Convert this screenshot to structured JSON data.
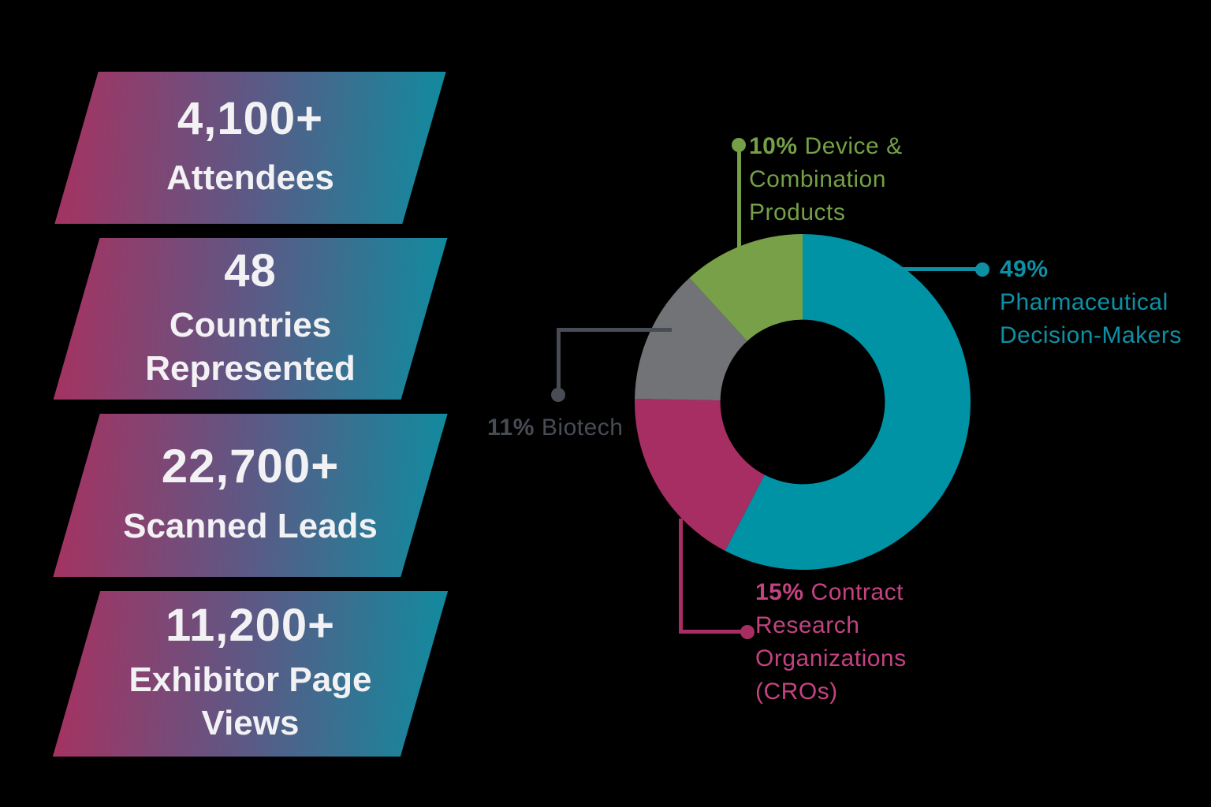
{
  "colors": {
    "background": "#000000",
    "banner_gradient_left": "#a43362",
    "banner_gradient_mid": "#5f5784",
    "banner_gradient_right": "#128a9e",
    "banner_text": "#f2f1f4"
  },
  "stat_banners": [
    {
      "value": "4,100+",
      "label": "Attendees"
    },
    {
      "value": "48",
      "label": "Countries Represented"
    },
    {
      "value": "22,700+",
      "label": "Scanned Leads"
    },
    {
      "value": "11,200+",
      "label": "Exhibitor Page Views"
    }
  ],
  "chart_data": {
    "type": "pie",
    "subtype": "donut",
    "inner_radius_ratio": 0.49,
    "start_angle_deg": 0,
    "direction": "clockwise",
    "values_normalized_to_circle": true,
    "legend_position": "around-chart",
    "segments": [
      {
        "name": "Pharmaceutical Decision-Makers",
        "value_pct": 49,
        "slice_color": "#0092a5",
        "label_color": "#0e90a4",
        "leader_color": "#0e90a4",
        "pct_text": "49%",
        "label_line1_rest": "",
        "label_lines": [
          "Pharmaceutical",
          "Decision-Makers"
        ]
      },
      {
        "name": "Contract Research Organizations (CROs)",
        "value_pct": 15,
        "slice_color": "#a72e62",
        "label_color": "#c24380",
        "leader_color": "#a72e62",
        "pct_text": "15%",
        "label_line1_rest": "Contract",
        "label_lines": [
          "Research",
          "Organizations",
          "(CROs)"
        ]
      },
      {
        "name": "Biotech",
        "value_pct": 11,
        "slice_color": "#727376",
        "label_color": "#474c55",
        "leader_color": "#474c55",
        "pct_text": "11%",
        "label_line1_rest": "Biotech",
        "label_lines": []
      },
      {
        "name": "Device & Combination Products",
        "value_pct": 10,
        "slice_color": "#78a049",
        "label_color": "#74a047",
        "leader_color": "#74a047",
        "pct_text": "10%",
        "label_line1_rest": "Device &",
        "label_lines": [
          "Combination",
          "Products"
        ]
      }
    ]
  }
}
